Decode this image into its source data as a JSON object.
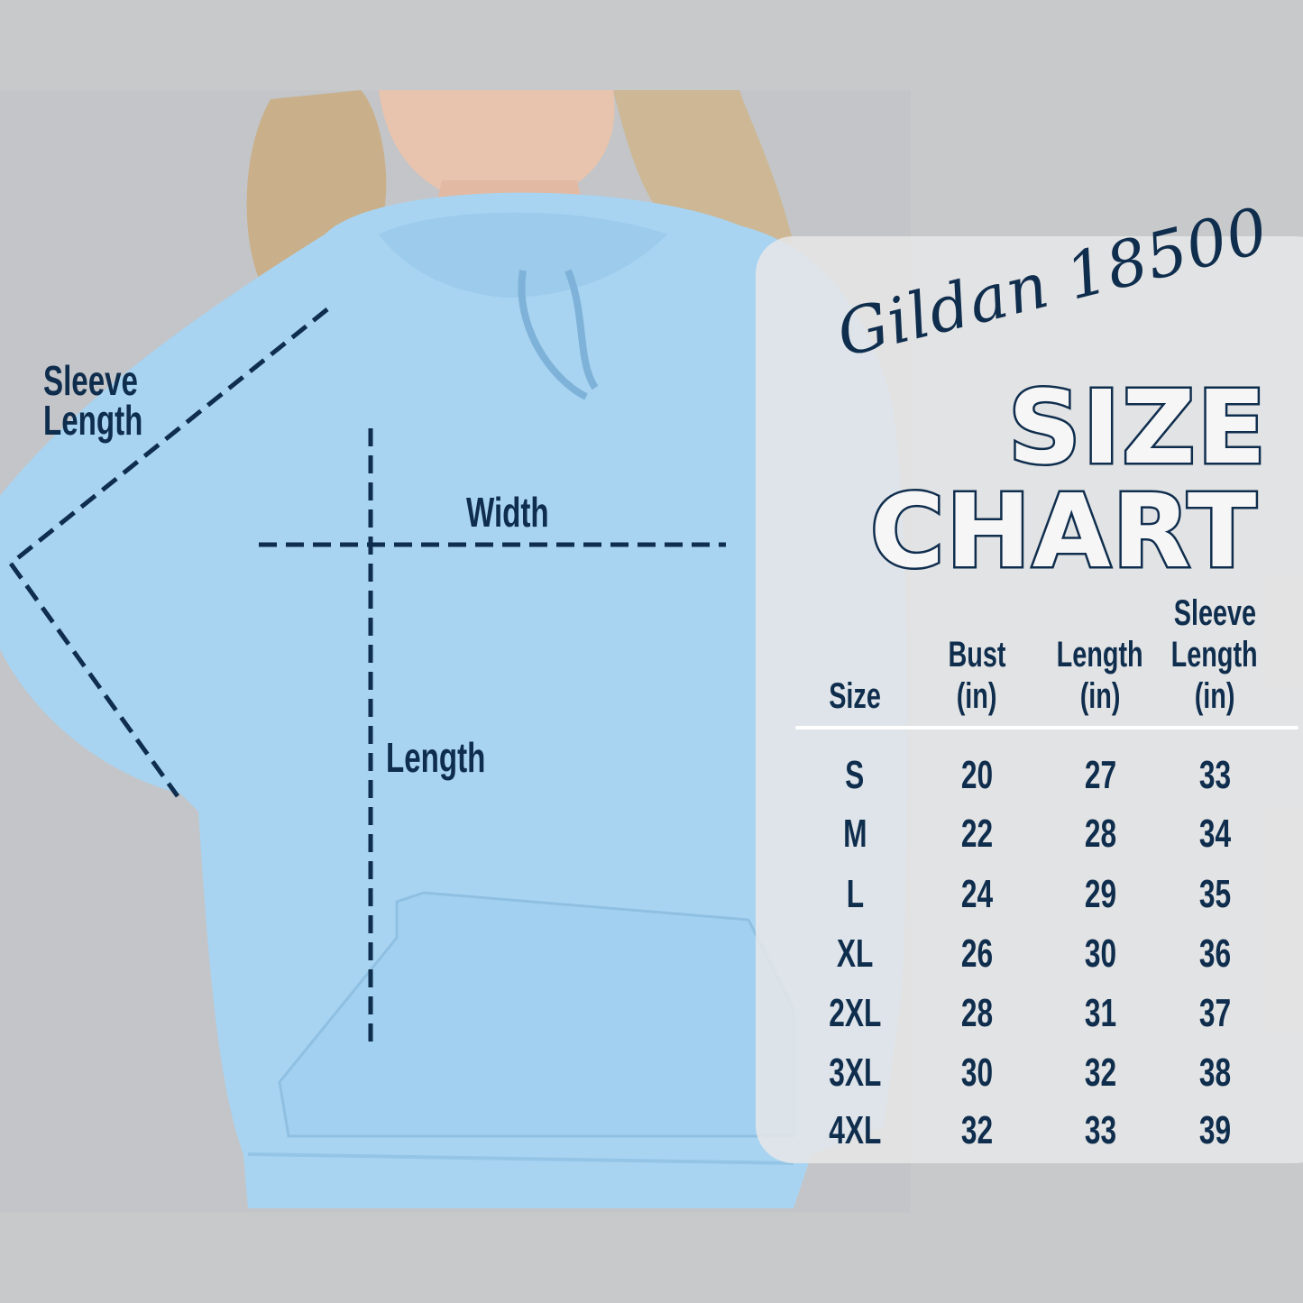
{
  "annotations": {
    "sleeve_length": [
      "Sleeve",
      "Length"
    ],
    "width": "Width",
    "length": "Length"
  },
  "chart": {
    "brand": "Gildan 18500",
    "title_line1": "SIZE",
    "title_line2": "CHART",
    "headers": [
      [
        "Size"
      ],
      [
        "Bust",
        "(in)"
      ],
      [
        "Length",
        "(in)"
      ],
      [
        "Sleeve",
        "Length",
        "(in)"
      ]
    ],
    "rows": [
      [
        "S",
        "20",
        "27",
        "33"
      ],
      [
        "M",
        "22",
        "28",
        "34"
      ],
      [
        "L",
        "24",
        "29",
        "35"
      ],
      [
        "XL",
        "26",
        "30",
        "36"
      ],
      [
        "2XL",
        "28",
        "31",
        "37"
      ],
      [
        "3XL",
        "30",
        "32",
        "38"
      ],
      [
        "4XL",
        "32",
        "33",
        "39"
      ]
    ]
  },
  "colors": {
    "background": "#c8c9cb",
    "hoodie": "#a8d4f2",
    "text": "#0f2d4d",
    "panel": "#e7e7e8"
  }
}
